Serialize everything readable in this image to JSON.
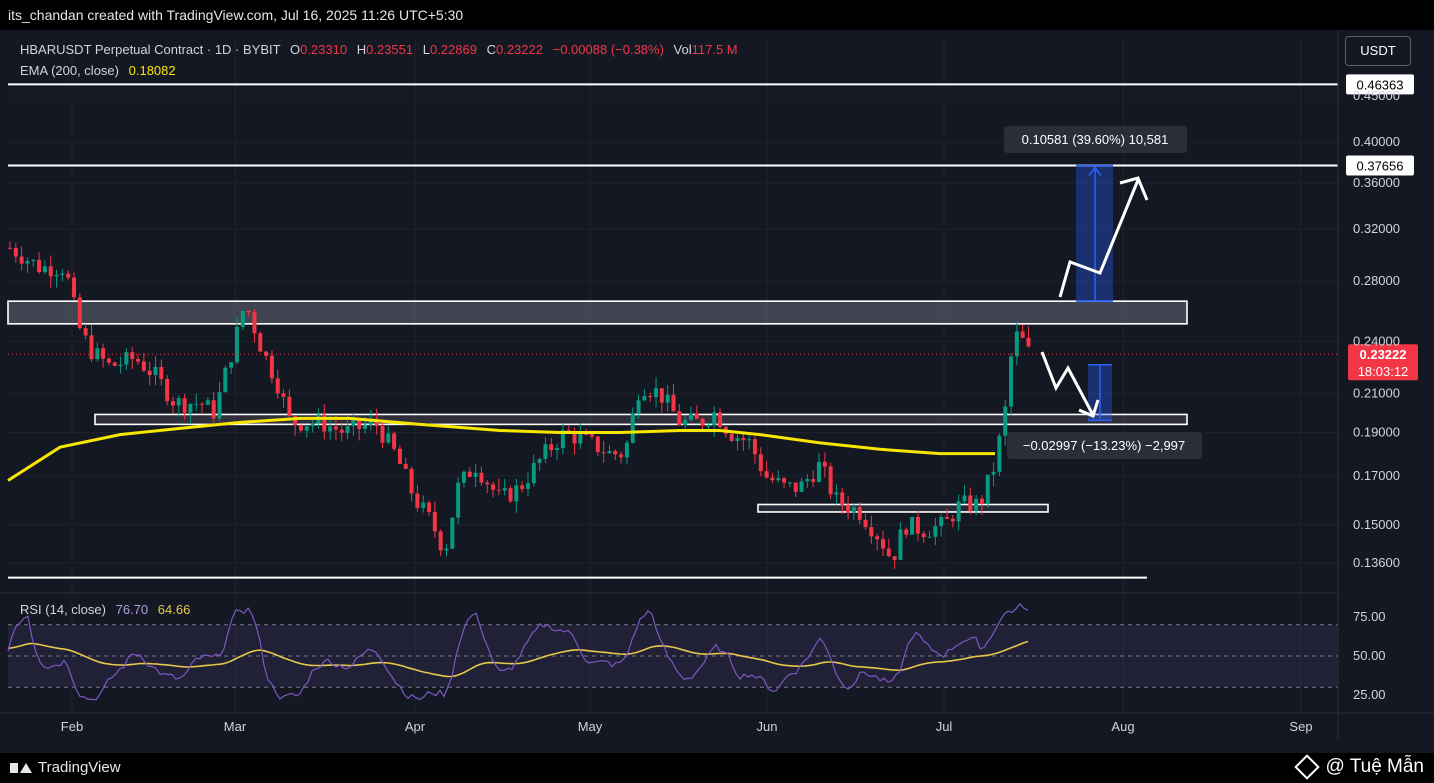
{
  "header": {
    "credit": "its_chandan created with TradingView.com, Jul 16, 2025 11:26 UTC+5:30"
  },
  "legend": {
    "symbol": "HBARUSDT Perpetual Contract · 1D · BYBIT",
    "open_label": "O",
    "open": "0.23310",
    "high_label": "H",
    "high": "0.23551",
    "low_label": "L",
    "low": "0.22869",
    "close_label": "C",
    "close": "0.23222",
    "change": "−0.00088 (−0.38%)",
    "vol_label": "Vol",
    "vol": "117.5 M",
    "ema_label": "EMA (200, close)",
    "ema_value": "0.18082"
  },
  "currency_button": "USDT",
  "rsi": {
    "label": "RSI (14, close)",
    "value": "76.70",
    "ma_value": "64.66"
  },
  "chart_data": {
    "type": "candlestick",
    "price_ticks": [
      "0.45000",
      "0.40000",
      "0.36000",
      "0.32000",
      "0.28000",
      "0.24000",
      "0.21000",
      "0.19000",
      "0.17000",
      "0.15000",
      "0.13600"
    ],
    "rsi_ticks": [
      "75.00",
      "50.00",
      "25.00"
    ],
    "x_ticks": [
      "Feb",
      "Mar",
      "Apr",
      "May",
      "Jun",
      "Jul",
      "Aug",
      "Sep"
    ],
    "last_price": "0.23222",
    "countdown": "18:03:12",
    "levels": [
      {
        "label": "0.46363",
        "price": 0.46363
      },
      {
        "label": "0.37656",
        "price": 0.37656
      }
    ],
    "zones": [
      {
        "low": 0.251,
        "high": 0.266
      },
      {
        "low": 0.194,
        "high": 0.199
      },
      {
        "low": 0.155,
        "high": 0.158
      }
    ],
    "support_low": 0.131,
    "measure_up": "0.10581 (39.60%) 10,581",
    "measure_down": "−0.02997 (−13.23%) −2,997",
    "series": [
      {
        "name": "EMA (200, close)",
        "color": "#f7e600"
      },
      {
        "name": "RSI",
        "color": "#7e57c2"
      }
    ],
    "colors": {
      "up": "#089981",
      "down": "#f23645"
    }
  },
  "footer": {
    "brand": "TradingView",
    "watermark": "@ Tuệ Mẫn"
  }
}
